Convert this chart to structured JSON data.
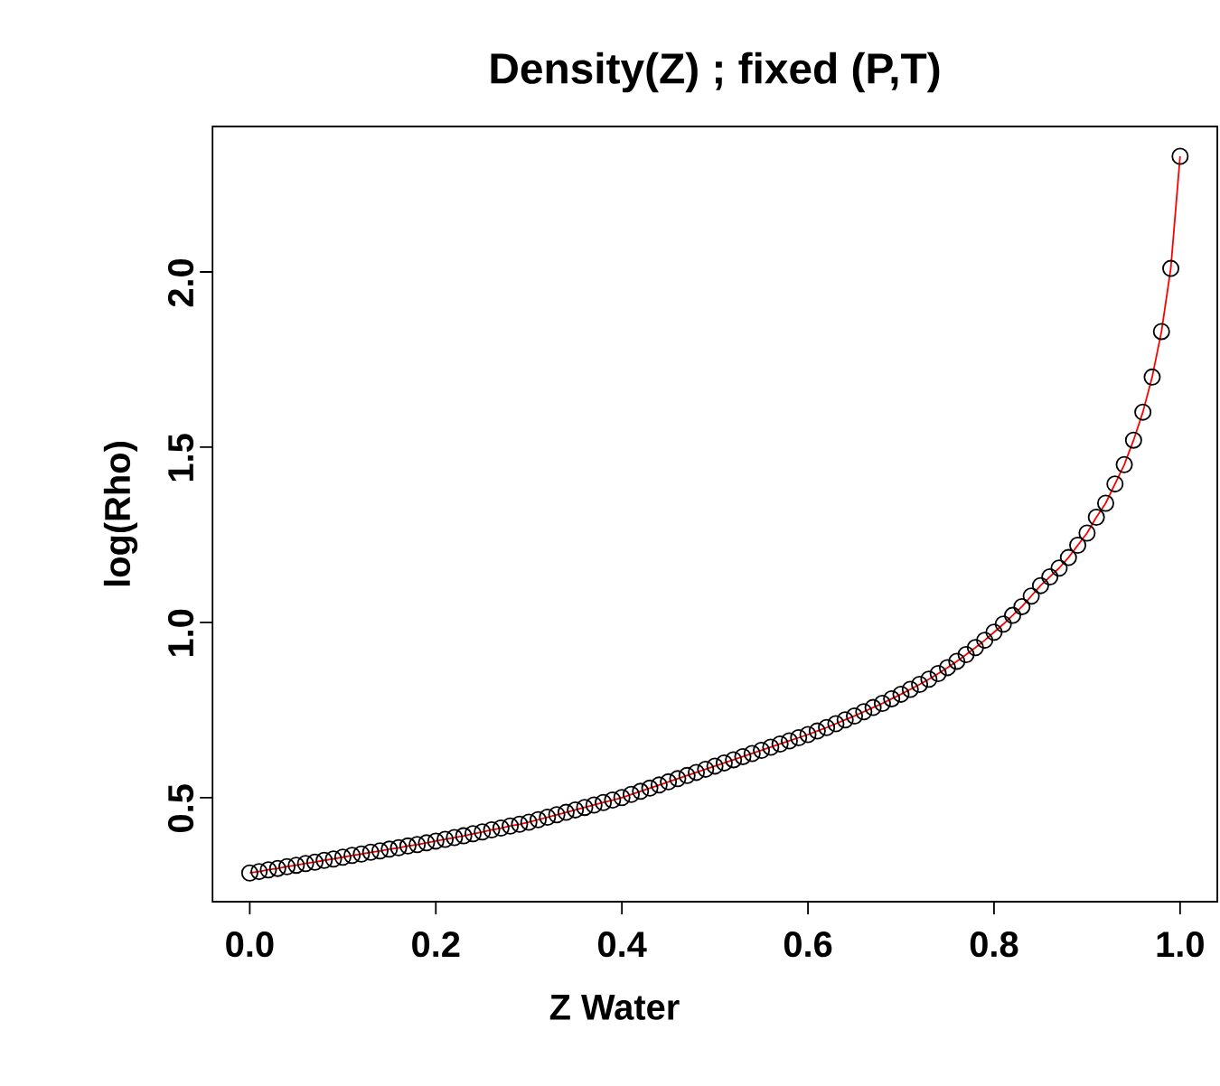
{
  "chart_data": {
    "type": "line",
    "title": "Density(Z) ; fixed (P,T)",
    "xlabel": "Z Water",
    "ylabel": "log(Rho)",
    "x": [
      0.0,
      0.01,
      0.02,
      0.03,
      0.04,
      0.05,
      0.06,
      0.07,
      0.08,
      0.09,
      0.1,
      0.11,
      0.12,
      0.13,
      0.14,
      0.15,
      0.16,
      0.17,
      0.18,
      0.19,
      0.2,
      0.21,
      0.22,
      0.23,
      0.24,
      0.25,
      0.26,
      0.27,
      0.28,
      0.29,
      0.3,
      0.31,
      0.32,
      0.33,
      0.34,
      0.35,
      0.36,
      0.37,
      0.38,
      0.39,
      0.4,
      0.41,
      0.42,
      0.43,
      0.44,
      0.45,
      0.46,
      0.47,
      0.48,
      0.49,
      0.5,
      0.51,
      0.52,
      0.53,
      0.54,
      0.55,
      0.56,
      0.57,
      0.58,
      0.59,
      0.6,
      0.61,
      0.62,
      0.63,
      0.64,
      0.65,
      0.66,
      0.67,
      0.68,
      0.69,
      0.7,
      0.71,
      0.72,
      0.73,
      0.74,
      0.75,
      0.76,
      0.77,
      0.78,
      0.79,
      0.8,
      0.81,
      0.82,
      0.83,
      0.84,
      0.85,
      0.86,
      0.87,
      0.88,
      0.89,
      0.9,
      0.91,
      0.92,
      0.93,
      0.94,
      0.95,
      0.96,
      0.97,
      0.98,
      0.99,
      1.0
    ],
    "series": [
      {
        "type": "scatter",
        "marker": "circle",
        "color": "#000000",
        "values": [
          0.285,
          0.289,
          0.294,
          0.298,
          0.303,
          0.307,
          0.312,
          0.316,
          0.321,
          0.325,
          0.33,
          0.335,
          0.339,
          0.344,
          0.348,
          0.353,
          0.357,
          0.362,
          0.366,
          0.371,
          0.376,
          0.381,
          0.386,
          0.391,
          0.397,
          0.402,
          0.408,
          0.413,
          0.419,
          0.424,
          0.43,
          0.437,
          0.444,
          0.451,
          0.458,
          0.465,
          0.472,
          0.479,
          0.486,
          0.493,
          0.5,
          0.509,
          0.518,
          0.527,
          0.536,
          0.545,
          0.554,
          0.563,
          0.572,
          0.581,
          0.59,
          0.599,
          0.608,
          0.617,
          0.626,
          0.635,
          0.644,
          0.653,
          0.662,
          0.671,
          0.68,
          0.69,
          0.7,
          0.711,
          0.722,
          0.733,
          0.745,
          0.757,
          0.769,
          0.782,
          0.795,
          0.809,
          0.823,
          0.838,
          0.854,
          0.871,
          0.889,
          0.908,
          0.928,
          0.949,
          0.972,
          0.995,
          1.02,
          1.045,
          1.075,
          1.105,
          1.13,
          1.155,
          1.185,
          1.22,
          1.255,
          1.3,
          1.34,
          1.395,
          1.45,
          1.52,
          1.6,
          1.7,
          1.83,
          2.01,
          2.33
        ]
      },
      {
        "color": "#ff0000",
        "values": [
          0.285,
          0.289,
          0.294,
          0.298,
          0.303,
          0.307,
          0.312,
          0.316,
          0.321,
          0.325,
          0.33,
          0.335,
          0.339,
          0.344,
          0.348,
          0.353,
          0.357,
          0.362,
          0.366,
          0.371,
          0.376,
          0.381,
          0.386,
          0.391,
          0.397,
          0.402,
          0.408,
          0.413,
          0.419,
          0.424,
          0.43,
          0.437,
          0.444,
          0.451,
          0.458,
          0.465,
          0.472,
          0.479,
          0.486,
          0.493,
          0.5,
          0.509,
          0.518,
          0.527,
          0.536,
          0.545,
          0.554,
          0.563,
          0.572,
          0.581,
          0.59,
          0.599,
          0.608,
          0.617,
          0.626,
          0.635,
          0.644,
          0.653,
          0.662,
          0.671,
          0.68,
          0.69,
          0.7,
          0.711,
          0.722,
          0.733,
          0.745,
          0.757,
          0.769,
          0.782,
          0.795,
          0.809,
          0.823,
          0.838,
          0.854,
          0.871,
          0.889,
          0.908,
          0.928,
          0.949,
          0.972,
          0.995,
          1.02,
          1.045,
          1.075,
          1.105,
          1.13,
          1.155,
          1.185,
          1.22,
          1.255,
          1.3,
          1.34,
          1.395,
          1.45,
          1.52,
          1.6,
          1.7,
          1.83,
          2.01,
          2.33
        ]
      }
    ],
    "xlim": [
      -0.04,
      1.04
    ],
    "ylim": [
      0.203,
      2.415
    ],
    "xticks": [
      {
        "value": 0,
        "label": "0.0"
      },
      0.2,
      0.4,
      0.6,
      0.8,
      {
        "value": 1,
        "label": "1.0"
      }
    ],
    "yticks": [
      0.5,
      {
        "value": 1,
        "label": "1.0"
      },
      1.5,
      {
        "value": 2,
        "label": "2.0"
      }
    ],
    "line_style": "solid",
    "grid": false
  }
}
